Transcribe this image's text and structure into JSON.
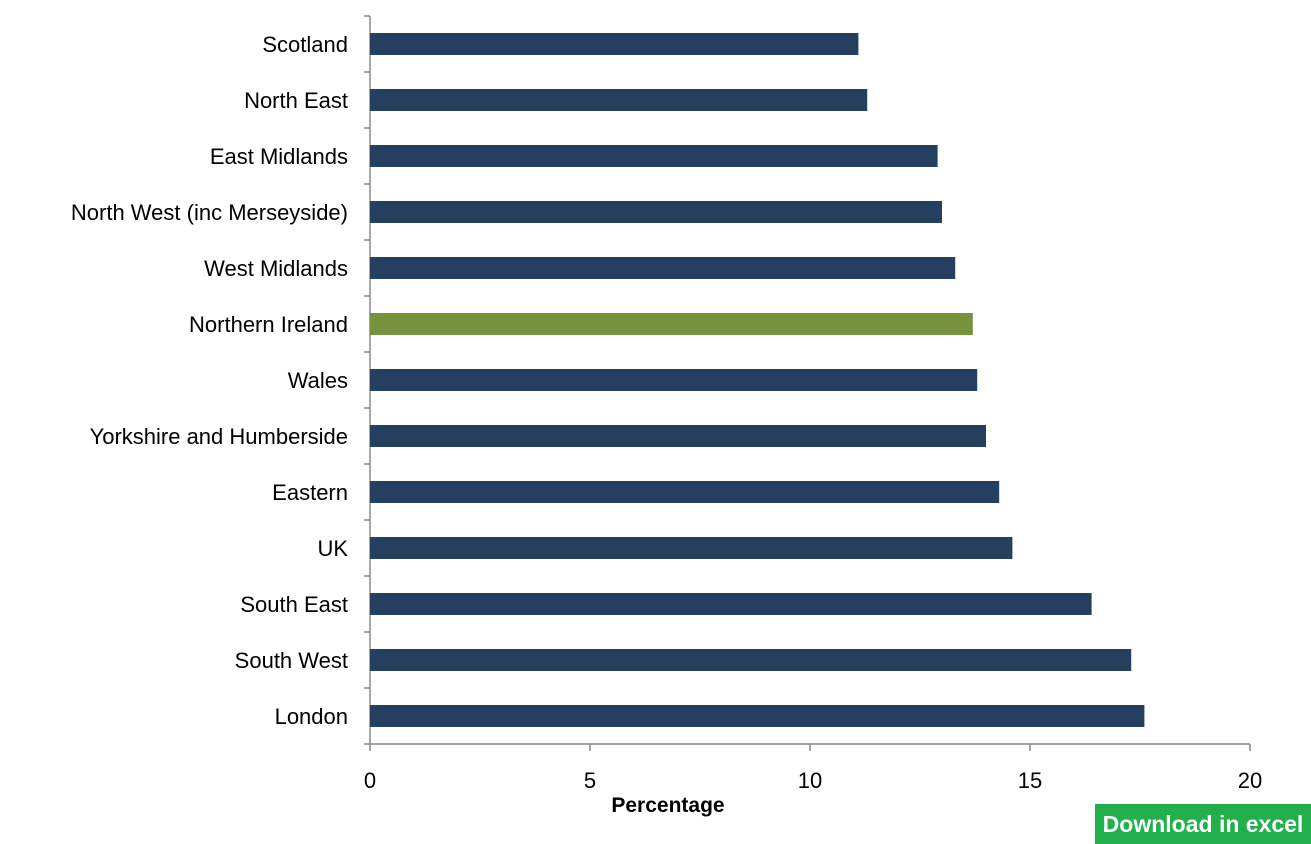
{
  "download": {
    "label": "Download in excel"
  },
  "chart_data": {
    "type": "bar",
    "orientation": "horizontal",
    "title": "",
    "xlabel": "Percentage",
    "ylabel": "",
    "xlim": [
      0,
      20
    ],
    "x_ticks": [
      0,
      5,
      10,
      15,
      20
    ],
    "grid": false,
    "categories": [
      "Scotland",
      "North East",
      "East Midlands",
      "North West (inc Merseyside)",
      "West Midlands",
      "Northern Ireland",
      "Wales",
      "Yorkshire and Humberside",
      "Eastern",
      "UK",
      "South East",
      "South West",
      "London"
    ],
    "values": [
      11.1,
      11.3,
      12.9,
      13.0,
      13.3,
      13.7,
      13.8,
      14.0,
      14.3,
      14.6,
      16.4,
      17.3,
      17.6
    ],
    "colors": {
      "default": "#253f5e",
      "highlight": "#76923c"
    },
    "highlight_category": "Northern Ireland"
  }
}
